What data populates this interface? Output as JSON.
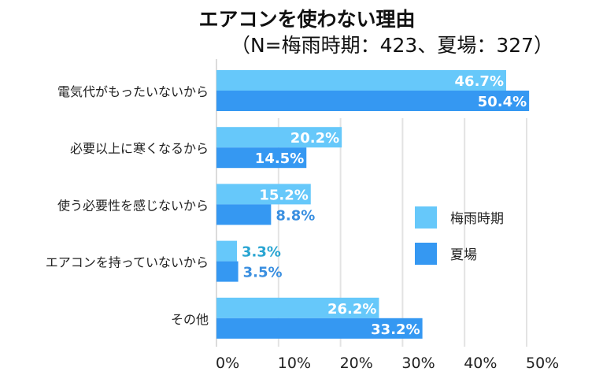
{
  "chart_data": {
    "type": "bar",
    "orientation": "horizontal",
    "title": "エアコンを使わない理由",
    "subtitle": "（N=梅雨時期：423、夏場：327）",
    "categories": [
      "電気代がもったいないから",
      "必要以上に寒くなるから",
      "使う必要性を感じないから",
      "エアコンを持っていないから",
      "その他"
    ],
    "series": [
      {
        "name": "梅雨時期",
        "color": "#66c8fa",
        "label_color": "#2aa5d2",
        "values": [
          46.7,
          20.2,
          15.2,
          3.3,
          26.2
        ]
      },
      {
        "name": "夏場",
        "color": "#3598f2",
        "label_color": "#3a8fe0",
        "values": [
          50.4,
          14.5,
          8.8,
          3.5,
          33.2
        ]
      }
    ],
    "xlim": [
      0,
      50
    ],
    "xticks": [
      "0%",
      "10%",
      "20%",
      "30%",
      "40%",
      "50%"
    ],
    "grid": true,
    "legend": "right-middle"
  }
}
